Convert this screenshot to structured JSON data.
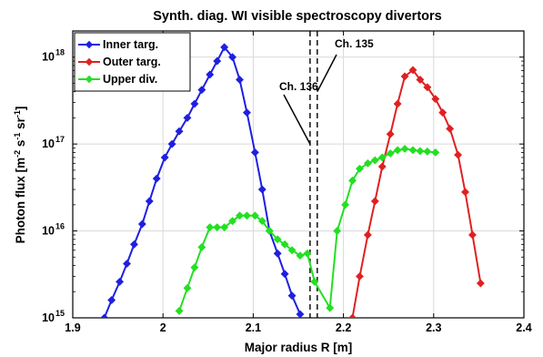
{
  "chart_data": {
    "type": "line",
    "title": "Synth. diag. WI visible spectroscopy divertors",
    "xlabel": "Major radius R [m]",
    "ylabel": "Photon flux [m^-2 s^-1 sr^-1]",
    "xlim": [
      1.9,
      2.4
    ],
    "ylim": [
      1000000000000000.0,
      2e+18
    ],
    "yscale": "log",
    "grid": true,
    "legend_position": "top-left",
    "x_ticks": [
      "1.9",
      "2",
      "2.1",
      "2.2",
      "2.3",
      "2.4"
    ],
    "y_ticks": [
      {
        "value": 1000000000000000.0,
        "base": "10",
        "exp": "15"
      },
      {
        "value": 1e+16,
        "base": "10",
        "exp": "16"
      },
      {
        "value": 1e+17,
        "base": "10",
        "exp": "17"
      },
      {
        "value": 1e+18,
        "base": "10",
        "exp": "18"
      }
    ],
    "series": [
      {
        "name": "Inner targ.",
        "color": "#1f1fe0",
        "marker": "diamond",
        "x": [
          1.935,
          1.943,
          1.952,
          1.96,
          1.968,
          1.977,
          1.985,
          1.993,
          2.002,
          2.01,
          2.018,
          2.027,
          2.035,
          2.043,
          2.052,
          2.06,
          2.068,
          2.077,
          2.085,
          2.093,
          2.102,
          2.11,
          2.118,
          2.127,
          2.135,
          2.143,
          2.152
        ],
        "y": [
          1000000000000000.0,
          1600000000000000.0,
          2600000000000000.0,
          4200000000000000.0,
          7000000000000000.0,
          1.2e+16,
          2.2e+16,
          4e+16,
          7e+16,
          1e+17,
          1.4e+17,
          2e+17,
          2.9e+17,
          4.2e+17,
          6.3e+17,
          9e+17,
          1.3e+18,
          1e+18,
          5.5e+17,
          2.3e+17,
          8e+16,
          3e+16,
          1e+16,
          5500000000000000.0,
          3200000000000000.0,
          1800000000000000.0,
          1100000000000000.0
        ]
      },
      {
        "name": "Outer targ.",
        "color": "#e02020",
        "marker": "diamond",
        "x": [
          2.21,
          2.218,
          2.227,
          2.235,
          2.243,
          2.252,
          2.26,
          2.268,
          2.277,
          2.285,
          2.293,
          2.302,
          2.31,
          2.318,
          2.327,
          2.335,
          2.343,
          2.352
        ],
        "y": [
          1000000000000000.0,
          3000000000000000.0,
          9000000000000000.0,
          2.2e+16,
          5.5e+16,
          1.3e+17,
          2.9e+17,
          6e+17,
          7.1e+17,
          5.5e+17,
          4.5e+17,
          3.3e+17,
          2.3e+17,
          1.5e+17,
          7.5e+16,
          2.8e+16,
          9000000000000000.0,
          2500000000000000.0
        ]
      },
      {
        "name": "Upper div.",
        "color": "#22e022",
        "marker": "diamond",
        "x": [
          2.018,
          2.027,
          2.035,
          2.043,
          2.052,
          2.06,
          2.068,
          2.077,
          2.085,
          2.093,
          2.102,
          2.11,
          2.118,
          2.127,
          2.135,
          2.143,
          2.152,
          2.16,
          2.168,
          2.185,
          2.193,
          2.202,
          2.21,
          2.218,
          2.227,
          2.235,
          2.243,
          2.252,
          2.26,
          2.268,
          2.277,
          2.285,
          2.293,
          2.302
        ],
        "y": [
          1200000000000000.0,
          2200000000000000.0,
          3800000000000000.0,
          6500000000000000.0,
          1.1e+16,
          1.1e+16,
          1.1e+16,
          1.3e+16,
          1.5e+16,
          1.5e+16,
          1.5e+16,
          1.3e+16,
          1e+16,
          8000000000000000.0,
          7000000000000000.0,
          6000000000000000.0,
          5200000000000000.0,
          5500000000000000.0,
          2600000000000000.0,
          1300000000000000.0,
          1e+16,
          2e+16,
          3.8e+16,
          5.2e+16,
          6e+16,
          6.5e+16,
          7e+16,
          7.8e+16,
          8.5e+16,
          8.8e+16,
          8.5e+16,
          8.3e+16,
          8.2e+16,
          8e+16
        ]
      }
    ],
    "vlines": [
      {
        "x": 2.163,
        "style": "dashed",
        "color": "#000000"
      },
      {
        "x": 2.171,
        "style": "dashed",
        "color": "#000000"
      }
    ],
    "annotations": [
      {
        "text": "Ch. 136",
        "arrow_to_x": 2.163,
        "arrow_to_y": 1e+17
      },
      {
        "text": "Ch. 135",
        "arrow_to_x": 2.171,
        "arrow_to_y": 4e+17
      }
    ]
  }
}
